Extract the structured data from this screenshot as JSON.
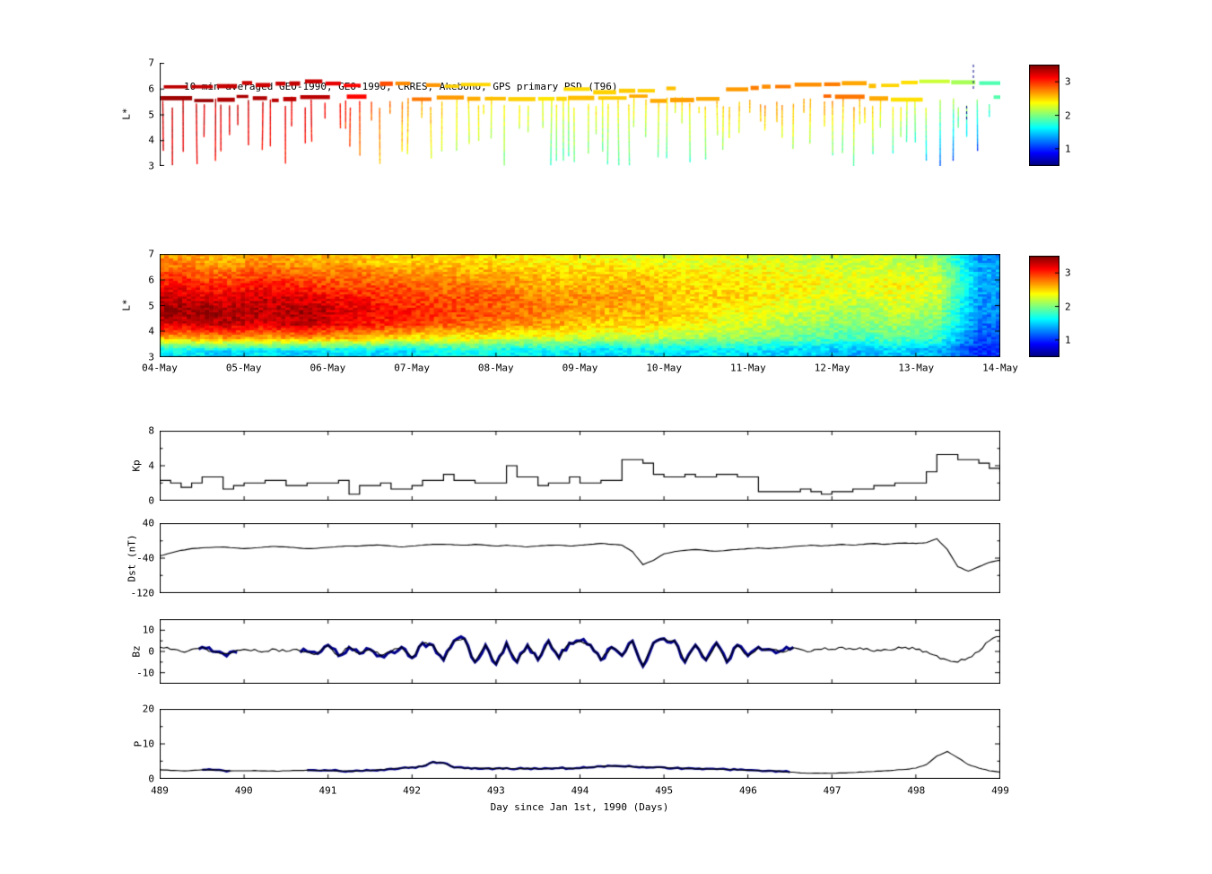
{
  "figure": {
    "bg": "#ffffff"
  },
  "colors": {
    "frame": "#000000",
    "line": "#000000",
    "overlay": "#00008b"
  },
  "x_axis": {
    "label": "Day since Jan 1st, 1990 (Days)",
    "ticks": [
      489,
      490,
      491,
      492,
      493,
      494,
      495,
      496,
      497,
      498,
      499
    ]
  },
  "chart_data": [
    {
      "id": "psd_tracks",
      "type": "heatmap",
      "subtype": "sparse_satellite_tracks",
      "title": "10-min averaged GEO-1990, GEO-1990, CRRES, Akebono, GPS  primary PSD (T96)",
      "ylabel": "L*",
      "xlim": [
        489,
        499
      ],
      "ylim": [
        3,
        7
      ],
      "yticks": [
        3,
        4,
        5,
        6,
        7
      ],
      "clim": [
        0.5,
        3.5
      ],
      "colorbar_ticks": [
        1,
        2,
        3
      ],
      "trend": [
        [
          489,
          3.3
        ],
        [
          491,
          3.2
        ],
        [
          491.7,
          2.8
        ],
        [
          492.5,
          2.5
        ],
        [
          493.5,
          2.35
        ],
        [
          494.5,
          2.45
        ],
        [
          495.5,
          2.5
        ],
        [
          496.2,
          2.7
        ],
        [
          497.3,
          2.65
        ],
        [
          498,
          2.35
        ],
        [
          498.5,
          2.1
        ],
        [
          499,
          1.8
        ]
      ],
      "geo_bands": [
        5.62,
        6.08
      ],
      "dashed_markers": [
        498.68,
        498.6
      ]
    },
    {
      "id": "psd_map",
      "type": "heatmap",
      "ylabel": "L*",
      "xlim": [
        489,
        499
      ],
      "ylim": [
        3,
        7
      ],
      "yticks": [
        3,
        4,
        5,
        6,
        7
      ],
      "xtick_labels": [
        "04-May",
        "05-May",
        "06-May",
        "07-May",
        "08-May",
        "09-May",
        "10-May",
        "11-May",
        "12-May",
        "13-May",
        "14-May"
      ],
      "clim": [
        0.5,
        3.5
      ],
      "colorbar_ticks": [
        1,
        2,
        3
      ],
      "grid_rows_order": "bottom_to_top",
      "l_bin_centers": [
        3.25,
        3.75,
        4.25,
        4.75,
        5.25,
        5.75,
        6.25,
        6.75
      ],
      "t_bin_start": 489.25,
      "t_bin_step": 0.5,
      "grid": [
        [
          1.6,
          1.5,
          1.6,
          1.5,
          1.6,
          1.5,
          1.6,
          1.7,
          1.6,
          1.6,
          1.5,
          1.6,
          1.5,
          1.6,
          1.5,
          1.5,
          1.4,
          1.5,
          1.4,
          1.0
        ],
        [
          2.6,
          2.7,
          2.6,
          2.7,
          2.6,
          2.5,
          2.4,
          2.4,
          2.3,
          2.3,
          2.2,
          2.2,
          2.1,
          2.1,
          2.0,
          1.9,
          1.8,
          1.9,
          1.8,
          1.1
        ],
        [
          3.2,
          3.3,
          3.2,
          3.3,
          3.1,
          3.0,
          2.9,
          2.8,
          2.7,
          2.6,
          2.5,
          2.5,
          2.4,
          2.3,
          2.2,
          2.1,
          2.0,
          2.1,
          2.0,
          1.2
        ],
        [
          3.4,
          3.4,
          3.3,
          3.4,
          3.2,
          3.1,
          3.0,
          2.9,
          2.8,
          2.7,
          2.6,
          2.6,
          2.5,
          2.4,
          2.3,
          2.2,
          2.1,
          2.2,
          2.1,
          1.3
        ],
        [
          3.3,
          3.2,
          3.3,
          3.2,
          3.1,
          3.0,
          2.9,
          2.9,
          2.8,
          2.7,
          2.7,
          2.6,
          2.5,
          2.5,
          2.4,
          2.3,
          2.2,
          2.3,
          2.2,
          1.3
        ],
        [
          3.1,
          3.0,
          3.1,
          3.0,
          2.9,
          2.9,
          2.8,
          2.8,
          2.7,
          2.6,
          2.6,
          2.6,
          2.5,
          2.5,
          2.4,
          2.4,
          2.3,
          2.4,
          2.3,
          1.4
        ],
        [
          2.9,
          2.8,
          2.9,
          2.8,
          2.8,
          2.7,
          2.7,
          2.6,
          2.6,
          2.5,
          2.5,
          2.5,
          2.4,
          2.4,
          2.4,
          2.3,
          2.3,
          2.3,
          2.2,
          1.4
        ],
        [
          2.7,
          2.6,
          2.7,
          2.6,
          2.6,
          2.5,
          2.5,
          2.5,
          2.4,
          2.4,
          2.4,
          2.3,
          2.3,
          2.3,
          2.3,
          2.2,
          2.2,
          2.2,
          2.1,
          1.3
        ]
      ]
    },
    {
      "id": "kp",
      "type": "line",
      "step": true,
      "ylabel": "Kp",
      "ylim": [
        0,
        8
      ],
      "yticks": [
        0,
        4,
        8
      ],
      "yminor": [
        2,
        6
      ],
      "x_start": 489,
      "dx": 0.125,
      "values": [
        2.3,
        2.0,
        1.5,
        2.0,
        2.7,
        2.7,
        1.3,
        1.7,
        2.0,
        2.0,
        2.3,
        2.3,
        1.7,
        1.7,
        2.0,
        2.0,
        2.0,
        2.3,
        0.7,
        1.7,
        1.7,
        2.0,
        1.3,
        1.3,
        1.7,
        2.3,
        2.3,
        3.0,
        2.3,
        2.3,
        2.0,
        2.0,
        2.0,
        4.0,
        2.7,
        2.7,
        1.7,
        2.0,
        2.0,
        2.7,
        2.0,
        2.0,
        2.3,
        2.3,
        4.7,
        4.7,
        4.3,
        3.0,
        2.7,
        2.7,
        3.0,
        2.7,
        2.7,
        3.0,
        3.0,
        2.7,
        2.7,
        1.0,
        1.0,
        1.0,
        1.0,
        1.3,
        1.0,
        0.7,
        1.0,
        1.0,
        1.3,
        1.3,
        1.7,
        1.7,
        2.0,
        2.0,
        2.0,
        3.3,
        5.3,
        5.3,
        4.7,
        4.7,
        4.3,
        3.7,
        3.3
      ]
    },
    {
      "id": "dst",
      "type": "line",
      "step": false,
      "ylabel": "Dst (nT)",
      "ylim": [
        -120,
        40
      ],
      "yticks": [
        -120,
        -40,
        40
      ],
      "yminor": [
        -80,
        0
      ],
      "x_start": 489,
      "dx": 0.125,
      "values": [
        -35,
        -28,
        -22,
        -18,
        -16,
        -15,
        -14,
        -16,
        -18,
        -16,
        -14,
        -13,
        -14,
        -16,
        -18,
        -17,
        -15,
        -13,
        -12,
        -12,
        -10,
        -10,
        -12,
        -14,
        -12,
        -10,
        -8,
        -8,
        -9,
        -10,
        -8,
        -10,
        -12,
        -10,
        -12,
        -14,
        -12,
        -10,
        -10,
        -12,
        -10,
        -8,
        -6,
        -8,
        -10,
        -25,
        -55,
        -45,
        -30,
        -25,
        -22,
        -20,
        -22,
        -24,
        -22,
        -20,
        -18,
        -16,
        -18,
        -16,
        -14,
        -12,
        -10,
        -12,
        -10,
        -8,
        -10,
        -8,
        -6,
        -8,
        -6,
        -5,
        -6,
        -4,
        5,
        -20,
        -60,
        -70,
        -60,
        -50,
        -45
      ]
    },
    {
      "id": "bz",
      "type": "line",
      "step": false,
      "ylabel": "Bz",
      "ylim": [
        -15,
        15
      ],
      "yticks": [
        -10,
        0,
        10
      ],
      "yminor": [
        -5,
        5
      ],
      "x_start": 489,
      "dx": 0.125,
      "blue_ranges": [
        [
          489.45,
          489.95
        ],
        [
          490.65,
          496.55
        ]
      ],
      "values": [
        2,
        1,
        0,
        1,
        2,
        0,
        -1,
        0,
        1,
        1,
        0,
        1,
        0,
        1,
        0,
        -1,
        3,
        -2,
        2,
        -1,
        1,
        -2,
        0,
        2,
        -3,
        4,
        3,
        -4,
        5,
        6,
        -5,
        3,
        -6,
        4,
        -5,
        3,
        -4,
        5,
        -3,
        4,
        5,
        3,
        -4,
        2,
        -2,
        5,
        -7,
        4,
        6,
        5,
        -5,
        3,
        -4,
        4,
        -5,
        3,
        -2,
        2,
        1,
        0,
        1,
        1,
        0,
        1,
        1,
        2,
        1,
        1,
        0,
        1,
        1,
        2,
        1,
        0,
        -2,
        -4,
        -5,
        -3,
        0,
        5,
        7
      ]
    },
    {
      "id": "p",
      "type": "line",
      "step": false,
      "ylabel": "P",
      "ylim": [
        0,
        20
      ],
      "yticks": [
        0,
        10,
        20
      ],
      "yminor": [
        5,
        15
      ],
      "x_start": 489,
      "dx": 0.125,
      "blue_ranges": [
        [
          489.5,
          489.85
        ],
        [
          490.75,
          496.5
        ]
      ],
      "values": [
        2.5,
        2.3,
        2.2,
        2.3,
        2.5,
        2.5,
        2.3,
        2.2,
        2.2,
        2.3,
        2.2,
        2.1,
        2.2,
        2.3,
        2.4,
        2.3,
        2.3,
        2.2,
        2.1,
        2.2,
        2.3,
        2.5,
        2.8,
        3.0,
        3.2,
        3.5,
        4.8,
        4.5,
        3.2,
        3.0,
        3.0,
        2.9,
        2.9,
        3.0,
        2.8,
        2.9,
        2.8,
        2.9,
        3.0,
        2.9,
        3.0,
        3.2,
        3.5,
        3.6,
        3.5,
        3.4,
        3.3,
        3.2,
        3.2,
        3.0,
        2.9,
        2.8,
        2.8,
        2.7,
        2.6,
        2.5,
        2.4,
        2.3,
        2.2,
        2.1,
        1.8,
        1.6,
        1.5,
        1.5,
        1.5,
        1.6,
        1.7,
        1.8,
        2.0,
        2.2,
        2.4,
        2.6,
        3.0,
        4.0,
        6.5,
        7.8,
        6.0,
        4.0,
        3.0,
        2.2,
        1.8
      ]
    }
  ]
}
